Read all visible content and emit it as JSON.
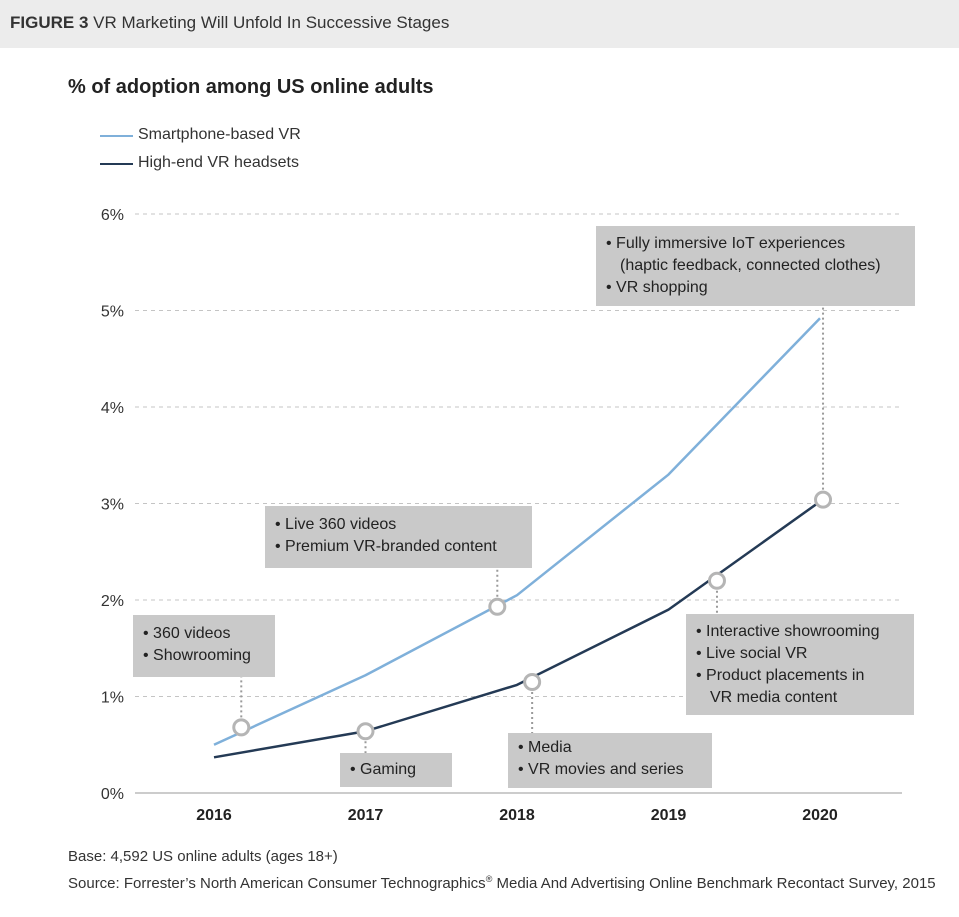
{
  "header": {
    "figure_label": "FIGURE 3",
    "title": "VR Marketing Will Unfold In Successive Stages"
  },
  "chart_data": {
    "type": "line",
    "title": "% of adoption among US online adults",
    "x": [
      2016,
      2017,
      2018,
      2019,
      2020
    ],
    "xlabel": "",
    "ylabel": "",
    "ylim": [
      0,
      6
    ],
    "yticks": [
      "0%",
      "1%",
      "2%",
      "3%",
      "4%",
      "5%",
      "6%"
    ],
    "xticks": [
      "2016",
      "2017",
      "2018",
      "2019",
      "2020"
    ],
    "grid": true,
    "legend_position": "top-left",
    "series": [
      {
        "name": "Smartphone-based VR",
        "color": "#7fb0da",
        "values": [
          0.5,
          1.22,
          2.05,
          3.3,
          4.92
        ]
      },
      {
        "name": "High-end VR headsets",
        "color": "#243a55",
        "values": [
          0.37,
          0.64,
          1.12,
          1.9,
          3.02
        ]
      }
    ],
    "markers": [
      {
        "series": 0,
        "x": 2016.18,
        "y": 0.68
      },
      {
        "series": 0,
        "x": 2017.87,
        "y": 1.93
      },
      {
        "series": 1,
        "x": 2017.0,
        "y": 0.64
      },
      {
        "series": 1,
        "x": 2018.1,
        "y": 1.15
      },
      {
        "series": 1,
        "x": 2019.32,
        "y": 2.2
      },
      {
        "series": 1,
        "x": 2020.02,
        "y": 3.04
      }
    ],
    "annotations": [
      {
        "lines": [
          "• 360 videos",
          "• Showrooming"
        ]
      },
      {
        "lines": [
          "• Live 360 videos",
          "• Premium VR-branded content"
        ]
      },
      {
        "lines": [
          "• Gaming"
        ]
      },
      {
        "lines": [
          "• Media",
          "• VR movies and series"
        ]
      },
      {
        "lines": [
          "• Interactive showrooming",
          "• Live social VR",
          "• Product placements in",
          "VR media content"
        ]
      },
      {
        "lines": [
          "• Fully immersive IoT experiences",
          "(haptic feedback, connected clothes)",
          "• VR shopping"
        ]
      }
    ]
  },
  "footer": {
    "base": "Base: 4,592 US online adults (ages 18+)",
    "source_pre": "Source: Forrester’s North American Consumer Technographics",
    "source_mark": "®",
    "source_post": " Media And Advertising Online Benchmark Recontact Survey, 2015"
  }
}
